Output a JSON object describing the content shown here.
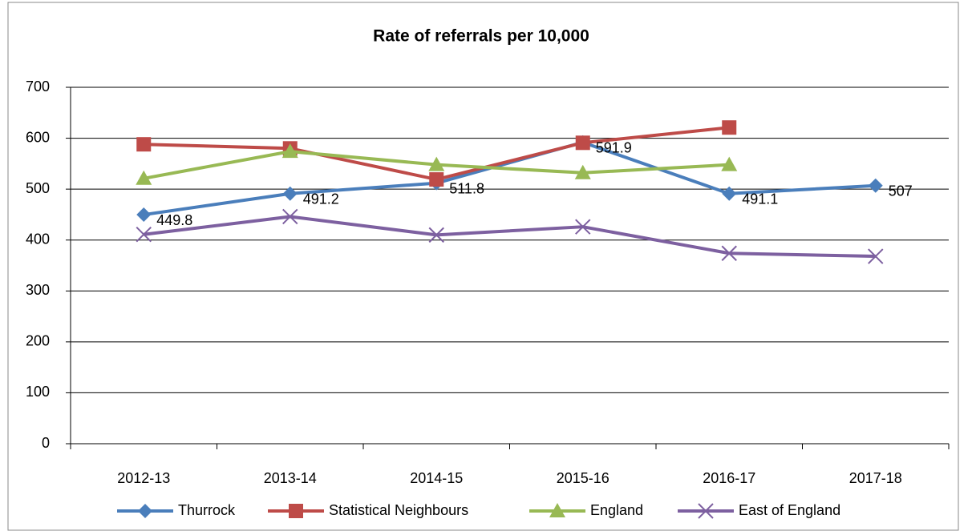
{
  "chart_data": {
    "type": "line",
    "title": "Rate of referrals per 10,000",
    "categories": [
      "2012-13",
      "2013-14",
      "2014-15",
      "2015-16",
      "2016-17",
      "2017-18"
    ],
    "series": [
      {
        "name": "Thurrock",
        "color": "#4a7ebb",
        "marker": "diamond",
        "values": [
          449.8,
          491.2,
          511.8,
          591.9,
          491.1,
          507
        ],
        "data_labels": true
      },
      {
        "name": "Statistical Neighbours",
        "color": "#be4b48",
        "marker": "square",
        "values": [
          588,
          580,
          519,
          591,
          621,
          null
        ]
      },
      {
        "name": "England",
        "color": "#98b954",
        "marker": "triangle",
        "values": [
          521,
          574,
          548,
          532,
          548,
          null
        ]
      },
      {
        "name": "East of England",
        "color": "#7d60a0",
        "marker": "x",
        "values": [
          411,
          446,
          410,
          426,
          374,
          368
        ]
      }
    ],
    "ylim": [
      0,
      700
    ],
    "yticks": [
      0,
      100,
      200,
      300,
      400,
      500,
      600,
      700
    ],
    "grid": true,
    "legend": "bottom"
  }
}
